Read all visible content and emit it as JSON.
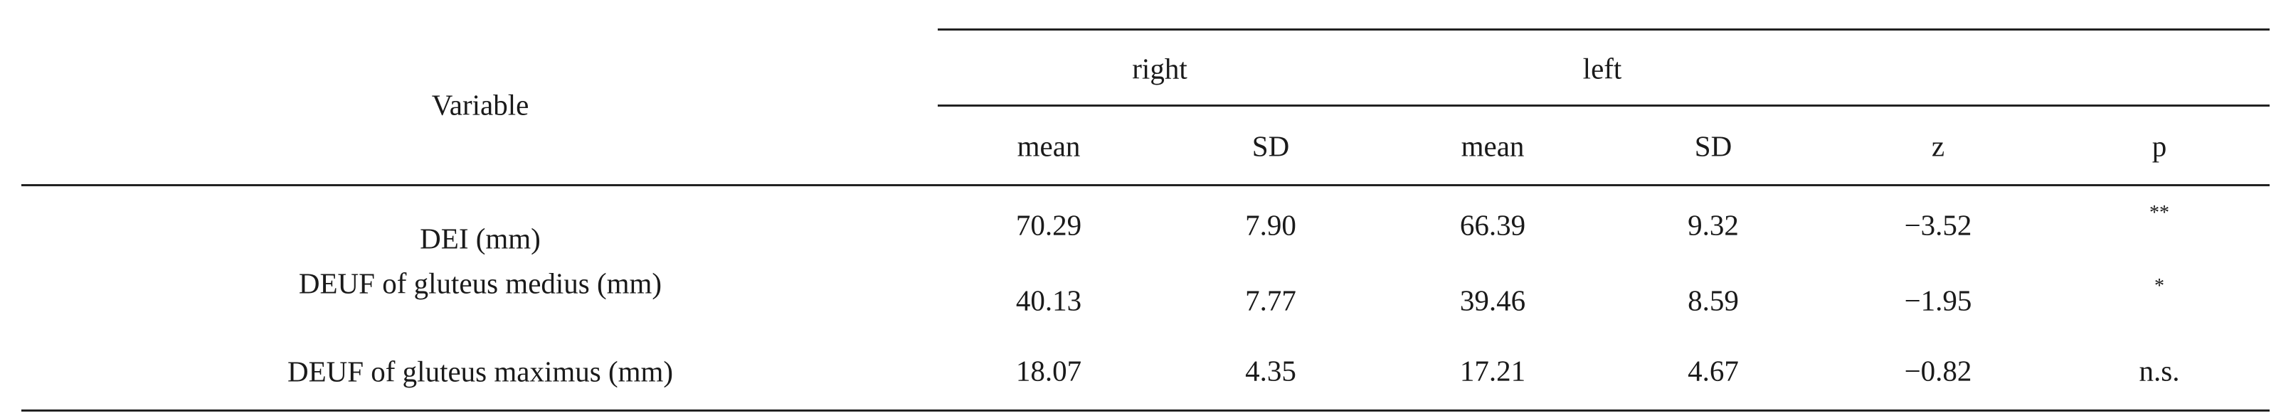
{
  "table": {
    "header": {
      "variable": "Variable",
      "group_right": "right",
      "group_left": "left",
      "columns": [
        "mean",
        "SD",
        "mean",
        "SD",
        "z",
        "p"
      ]
    },
    "rows": [
      {
        "label": "DEI (mm)",
        "cells": [
          "70.29",
          "7.90",
          "66.39",
          "9.32",
          "−3.52",
          "**"
        ]
      },
      {
        "label": "DEUF of gluteus medius (mm)",
        "cells": [
          "40.13",
          "7.77",
          "39.46",
          "8.59",
          "−1.95",
          "*"
        ]
      },
      {
        "label": "DEUF of gluteus maximus (mm)",
        "cells": [
          "18.07",
          "4.35",
          "17.21",
          "4.67",
          "−0.82",
          "n.s."
        ]
      }
    ]
  }
}
